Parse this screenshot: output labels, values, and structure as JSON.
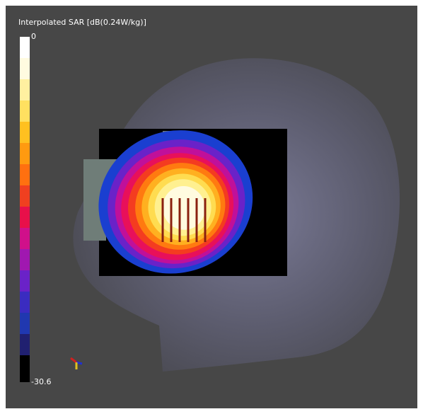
{
  "colorbar": {
    "title": "Interpolated SAR [dB(0.24W/kg)]",
    "max": 0,
    "min": -30.6
  }
}
